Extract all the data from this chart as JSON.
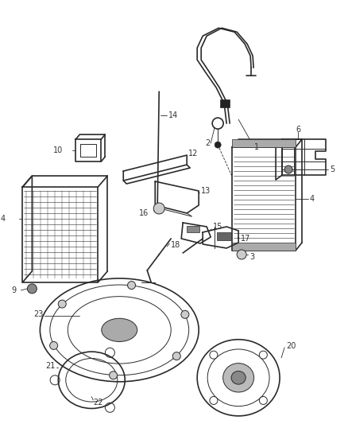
{
  "bg_color": "#ffffff",
  "fig_width": 4.38,
  "fig_height": 5.33,
  "dpi": 100,
  "line_color": "#2a2a2a",
  "label_color": "#333333",
  "font_size": 7.0
}
